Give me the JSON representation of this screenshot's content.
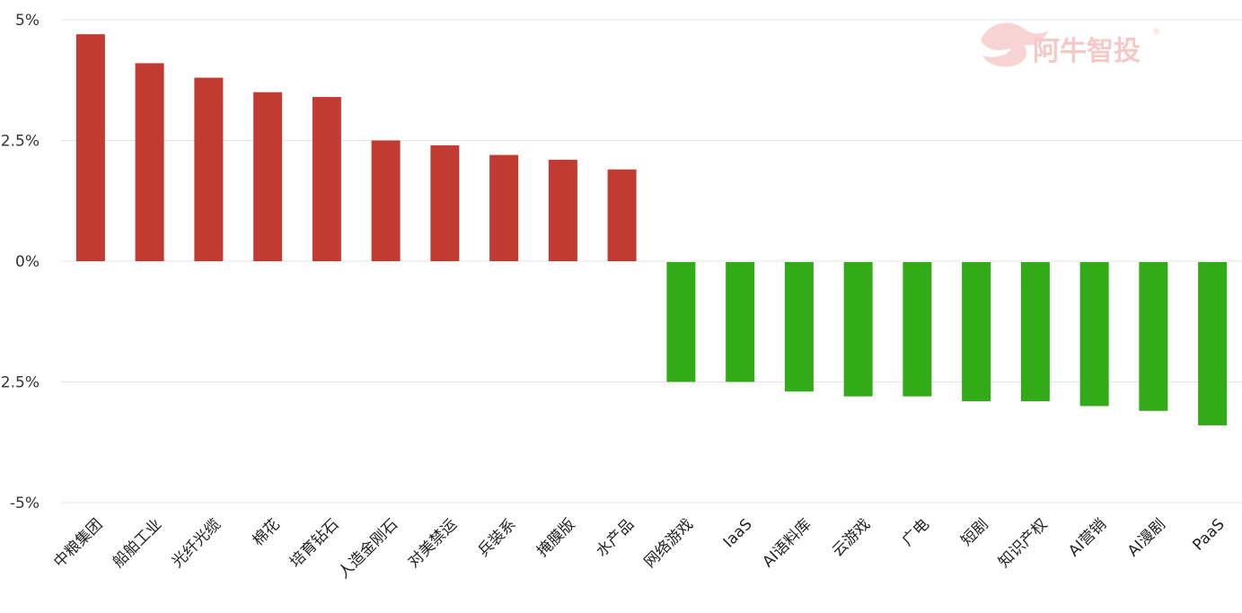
{
  "watermark": {
    "text": "阿牛智投",
    "mark": "®"
  },
  "chart_data": {
    "type": "bar",
    "categories": [
      "中粮集团",
      "船舶工业",
      "光纤光缆",
      "棉花",
      "培育钻石",
      "人造金刚石",
      "对美禁运",
      "兵装系",
      "掩膜版",
      "水产品",
      "网络游戏",
      "IaaS",
      "AI语料库",
      "云游戏",
      "广电",
      "短剧",
      "知识产权",
      "AI营销",
      "AI漫剧",
      "PaaS"
    ],
    "values": [
      4.7,
      4.1,
      3.8,
      3.5,
      3.4,
      2.5,
      2.4,
      2.2,
      2.1,
      1.9,
      -2.5,
      -2.5,
      -2.7,
      -2.8,
      -2.8,
      -2.9,
      -2.9,
      -3.0,
      -3.1,
      -3.4
    ],
    "yticks": [
      "5%",
      "2.5%",
      "0%",
      "-2.5%",
      "-5%"
    ],
    "ytick_values": [
      5,
      2.5,
      0,
      -2.5,
      -5
    ],
    "ylim": [
      -5,
      5
    ],
    "grid": true,
    "title": "",
    "xlabel": "",
    "ylabel": "",
    "colors": {
      "positive": "#c23b33",
      "negative": "#33aa17",
      "grid": "#e4e4e4"
    }
  }
}
